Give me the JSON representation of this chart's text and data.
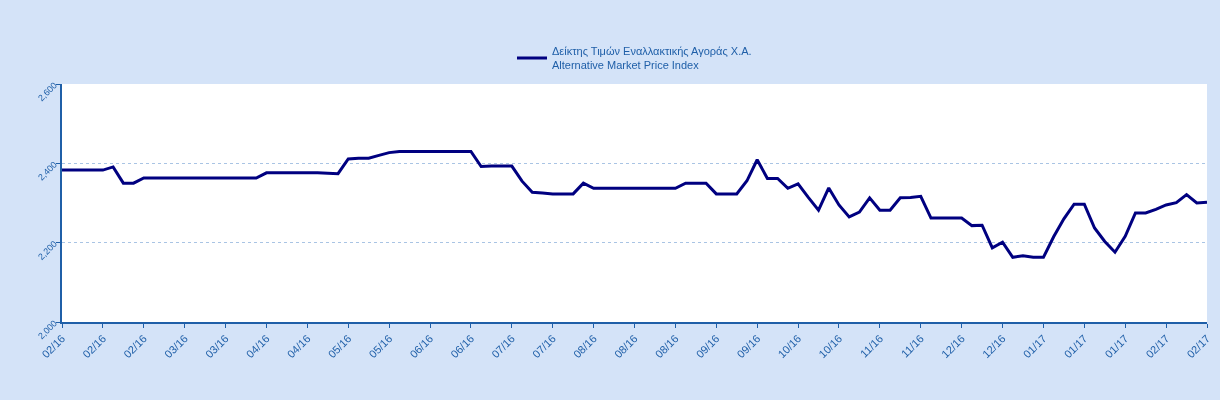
{
  "chart_data": {
    "type": "line",
    "legend": "top",
    "grid": "y",
    "marker": "none",
    "line_style": "solid",
    "categories": [
      "02/16",
      null,
      null,
      null,
      "02/16",
      null,
      null,
      null,
      "02/16",
      null,
      null,
      null,
      "03/16",
      null,
      null,
      null,
      "03/16",
      null,
      null,
      null,
      "04/16",
      null,
      null,
      null,
      "04/16",
      null,
      null,
      null,
      "05/16",
      null,
      null,
      null,
      "05/16",
      null,
      null,
      null,
      "06/16",
      null,
      null,
      null,
      "06/16",
      null,
      null,
      null,
      "07/16",
      null,
      null,
      null,
      "07/16",
      null,
      null,
      null,
      "08/16",
      null,
      null,
      null,
      "08/16",
      null,
      null,
      null,
      "08/16",
      null,
      null,
      null,
      "09/16",
      null,
      null,
      null,
      "09/16",
      null,
      null,
      null,
      "10/16",
      null,
      null,
      null,
      "10/16",
      null,
      null,
      null,
      "11/16",
      null,
      null,
      null,
      "11/16",
      null,
      null,
      null,
      "12/16",
      null,
      null,
      null,
      "12/16",
      null,
      null,
      null,
      "01/17",
      null,
      null,
      null,
      "01/17",
      null,
      null,
      null,
      "01/17",
      null,
      null,
      null,
      "02/17",
      null,
      null,
      null,
      "02/17"
    ],
    "series": [
      {
        "name": "Δείκτης Τιμών Εναλλακτικής Αγοράς Χ.Α.\nAlternative Market Price Index",
        "color": "#000080",
        "values": [
          2383,
          2383,
          2383,
          2383,
          2383,
          2391,
          2350,
          2350,
          2363,
          2363,
          2363,
          2363,
          2363,
          2363,
          2363,
          2363,
          2363,
          2363,
          2363,
          2363,
          2376,
          2376,
          2376,
          2376,
          2376,
          2376,
          2375,
          2374,
          2411,
          2413,
          2413,
          2420,
          2427,
          2430,
          2430,
          2430,
          2430,
          2430,
          2430,
          2430,
          2430,
          2392,
          2393,
          2393,
          2393,
          2355,
          2327,
          2325,
          2323,
          2323,
          2323,
          2350,
          2337,
          2337,
          2337,
          2337,
          2337,
          2337,
          2337,
          2337,
          2337,
          2350,
          2350,
          2350,
          2323,
          2323,
          2323,
          2356,
          2409,
          2362,
          2362,
          2337,
          2348,
          2314,
          2282,
          2338,
          2295,
          2265,
          2277,
          2313,
          2282,
          2282,
          2313,
          2314,
          2317,
          2262,
          2262,
          2262,
          2262,
          2243,
          2244,
          2187,
          2201,
          2163,
          2167,
          2163,
          2163,
          2215,
          2260,
          2297,
          2297,
          2237,
          2203,
          2176,
          2216,
          2275,
          2275,
          2284,
          2295,
          2301,
          2321,
          2300,
          2302
        ]
      }
    ],
    "ylim": [
      2000,
      2600
    ],
    "yticks": [
      {
        "value": 2000,
        "label": "2,000"
      },
      {
        "value": 2200,
        "label": "2,200"
      },
      {
        "value": 2400,
        "label": "2,400"
      },
      {
        "value": 2600,
        "label": "2,600"
      }
    ]
  }
}
